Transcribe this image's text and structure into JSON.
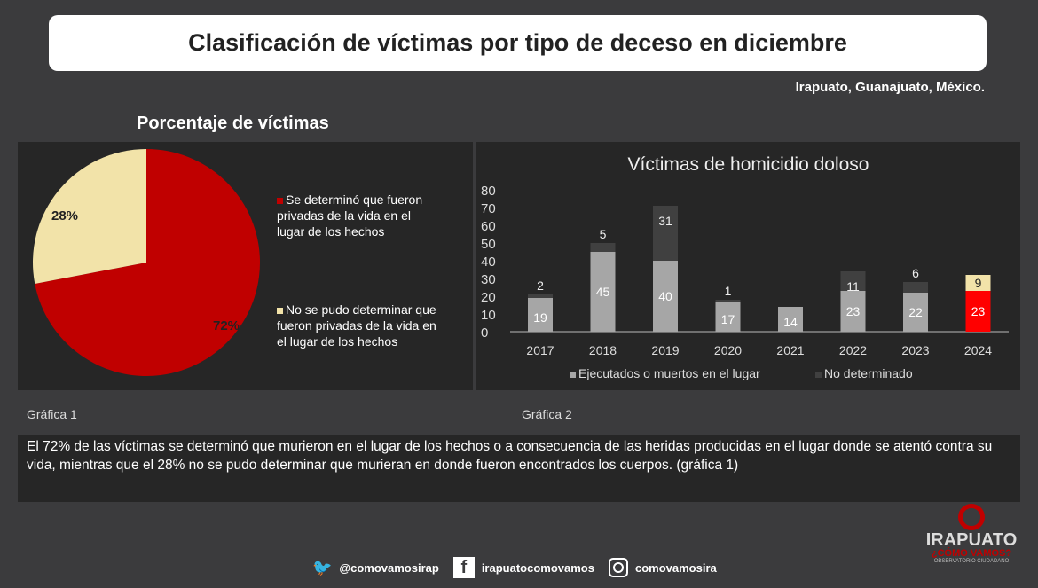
{
  "title": "Clasificación de víctimas por tipo de deceso en diciembre",
  "location": "Irapuato, Guanajuato, México.",
  "colors": {
    "red": "#c00000",
    "beige": "#f2e3a9",
    "light": "#a6a6a6",
    "dark": "#404040",
    "highlight": "#ff0000"
  },
  "chart_data": [
    {
      "type": "pie",
      "title": "Porcentaje de víctimas",
      "caption": "Gráfica 1",
      "slices": [
        {
          "label": "Se determinó que fueron privadas de la vida en el lugar de los hechos",
          "value": 72,
          "text": "72%"
        },
        {
          "label": "No se pudo determinar que fueron privadas de la vida en el lugar de los hechos",
          "value": 28,
          "text": "28%"
        }
      ]
    },
    {
      "type": "bar",
      "stacked": true,
      "title": "Víctimas de homicidio doloso",
      "caption": "Gráfica 2",
      "categories": [
        "2017",
        "2018",
        "2019",
        "2020",
        "2021",
        "2022",
        "2023",
        "2024"
      ],
      "yticks": [
        "0",
        "10",
        "20",
        "30",
        "40",
        "50",
        "60",
        "70",
        "80"
      ],
      "ylim": [
        0,
        80
      ],
      "series": [
        {
          "name": "Ejecutados o muertos en el lugar",
          "values": [
            19,
            45,
            40,
            17,
            14,
            23,
            22,
            23
          ]
        },
        {
          "name": "No determinado",
          "values": [
            2,
            5,
            31,
            1,
            0,
            11,
            6,
            9
          ]
        }
      ]
    }
  ],
  "note": "El 72% de las víctimas se determinó que murieron en el lugar de los hechos o a consecuencia de las heridas producidas en el lugar donde se atentó contra su vida, mientras que el 28% no se pudo determinar que murieran en donde fueron encontrados los cuerpos. (gráfica 1)",
  "footer": {
    "twitter": "@comovamosirap",
    "facebook": "irapuatocomovamos",
    "instagram": "comovamosira"
  },
  "logo": {
    "line1": "IRAPUATO",
    "line2": "¿CÓMO VAMOS?",
    "line3": "OBSERVATORIO CIUDADANO"
  }
}
